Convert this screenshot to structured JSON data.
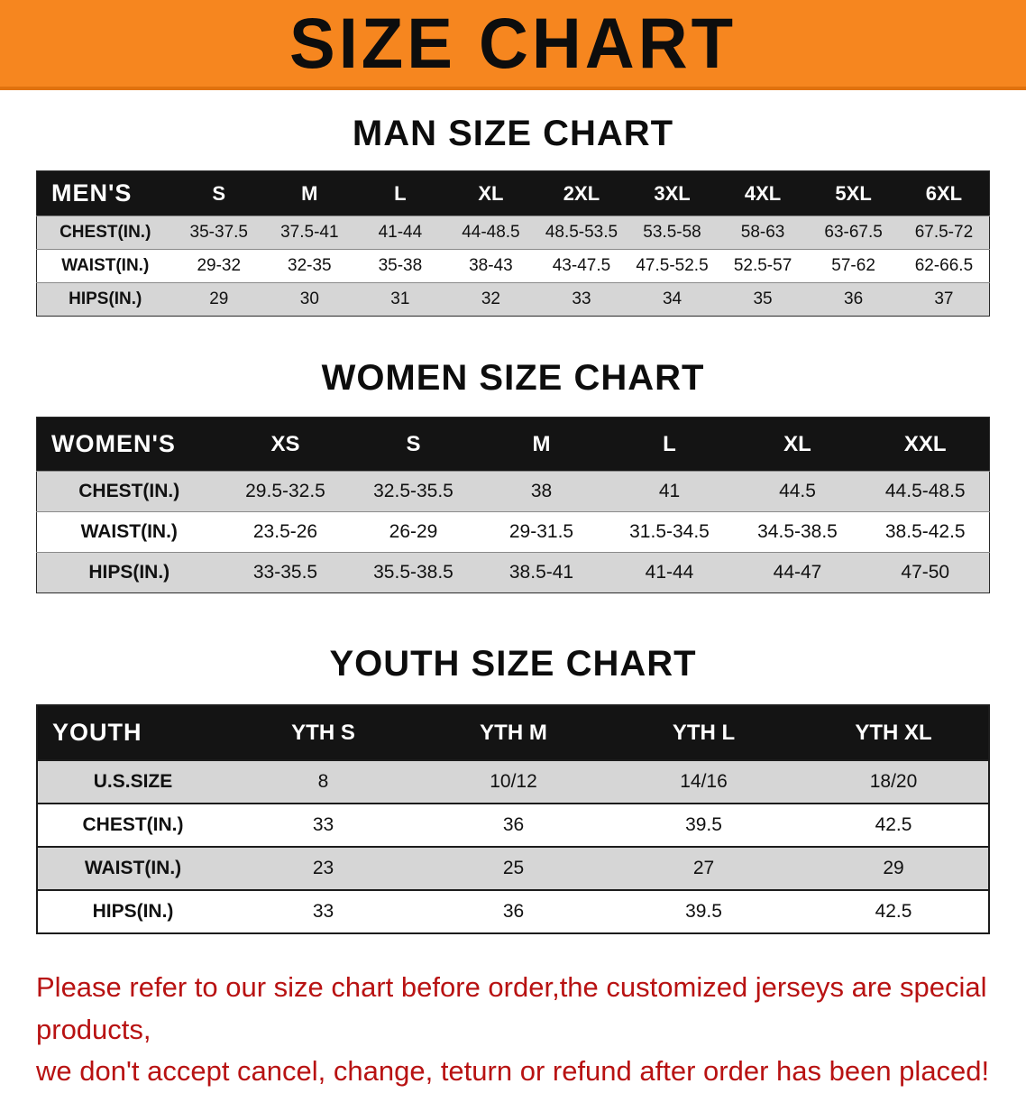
{
  "colors": {
    "banner-bg": "#f6861f",
    "banner-edge": "#e0720e",
    "header-bar-bg": "#141414",
    "header-bar-text": "#ffffff",
    "row-alt-bg": "#d6d6d6",
    "table-border": "#1c1c1c",
    "disclaimer-red": "#b81212"
  },
  "banner": {
    "title": "SIZE CHART"
  },
  "men": {
    "heading": "MAN SIZE CHART",
    "table": {
      "header": [
        "MEN'S",
        "S",
        "M",
        "L",
        "XL",
        "2XL",
        "3XL",
        "4XL",
        "5XL",
        "6XL"
      ],
      "rows": [
        {
          "label": "CHEST(IN.)",
          "values": [
            "35-37.5",
            "37.5-41",
            "41-44",
            "44-48.5",
            "48.5-53.5",
            "53.5-58",
            "58-63",
            "63-67.5",
            "67.5-72"
          ]
        },
        {
          "label": "WAIST(IN.)",
          "values": [
            "29-32",
            "32-35",
            "35-38",
            "38-43",
            "43-47.5",
            "47.5-52.5",
            "52.5-57",
            "57-62",
            "62-66.5"
          ]
        },
        {
          "label": "HIPS(IN.)",
          "values": [
            "29",
            "30",
            "31",
            "32",
            "33",
            "34",
            "35",
            "36",
            "37"
          ]
        }
      ]
    }
  },
  "women": {
    "heading": "WOMEN SIZE CHART",
    "table": {
      "header": [
        "WOMEN'S",
        "XS",
        "S",
        "M",
        "L",
        "XL",
        "XXL"
      ],
      "rows": [
        {
          "label": "CHEST(IN.)",
          "values": [
            "29.5-32.5",
            "32.5-35.5",
            "38",
            "41",
            "44.5",
            "44.5-48.5"
          ]
        },
        {
          "label": "WAIST(IN.)",
          "values": [
            "23.5-26",
            "26-29",
            "29-31.5",
            "31.5-34.5",
            "34.5-38.5",
            "38.5-42.5"
          ]
        },
        {
          "label": "HIPS(IN.)",
          "values": [
            "33-35.5",
            "35.5-38.5",
            "38.5-41",
            "41-44",
            "44-47",
            "47-50"
          ]
        }
      ]
    }
  },
  "youth": {
    "heading": "YOUTH SIZE CHART",
    "table": {
      "header": [
        "YOUTH",
        "YTH S",
        "YTH M",
        "YTH L",
        "YTH XL"
      ],
      "rows": [
        {
          "label": "U.S.SIZE",
          "values": [
            "8",
            "10/12",
            "14/16",
            "18/20"
          ]
        },
        {
          "label": "CHEST(IN.)",
          "values": [
            "33",
            "36",
            "39.5",
            "42.5"
          ]
        },
        {
          "label": "WAIST(IN.)",
          "values": [
            "23",
            "25",
            "27",
            "29"
          ]
        },
        {
          "label": "HIPS(IN.)",
          "values": [
            "33",
            "36",
            "39.5",
            "42.5"
          ]
        }
      ]
    }
  },
  "disclaimer": {
    "line1": "Please refer to our size chart before order,the customized jerseys are special products,",
    "line2": "we don't accept cancel, change, teturn or refund after order has been placed!"
  }
}
